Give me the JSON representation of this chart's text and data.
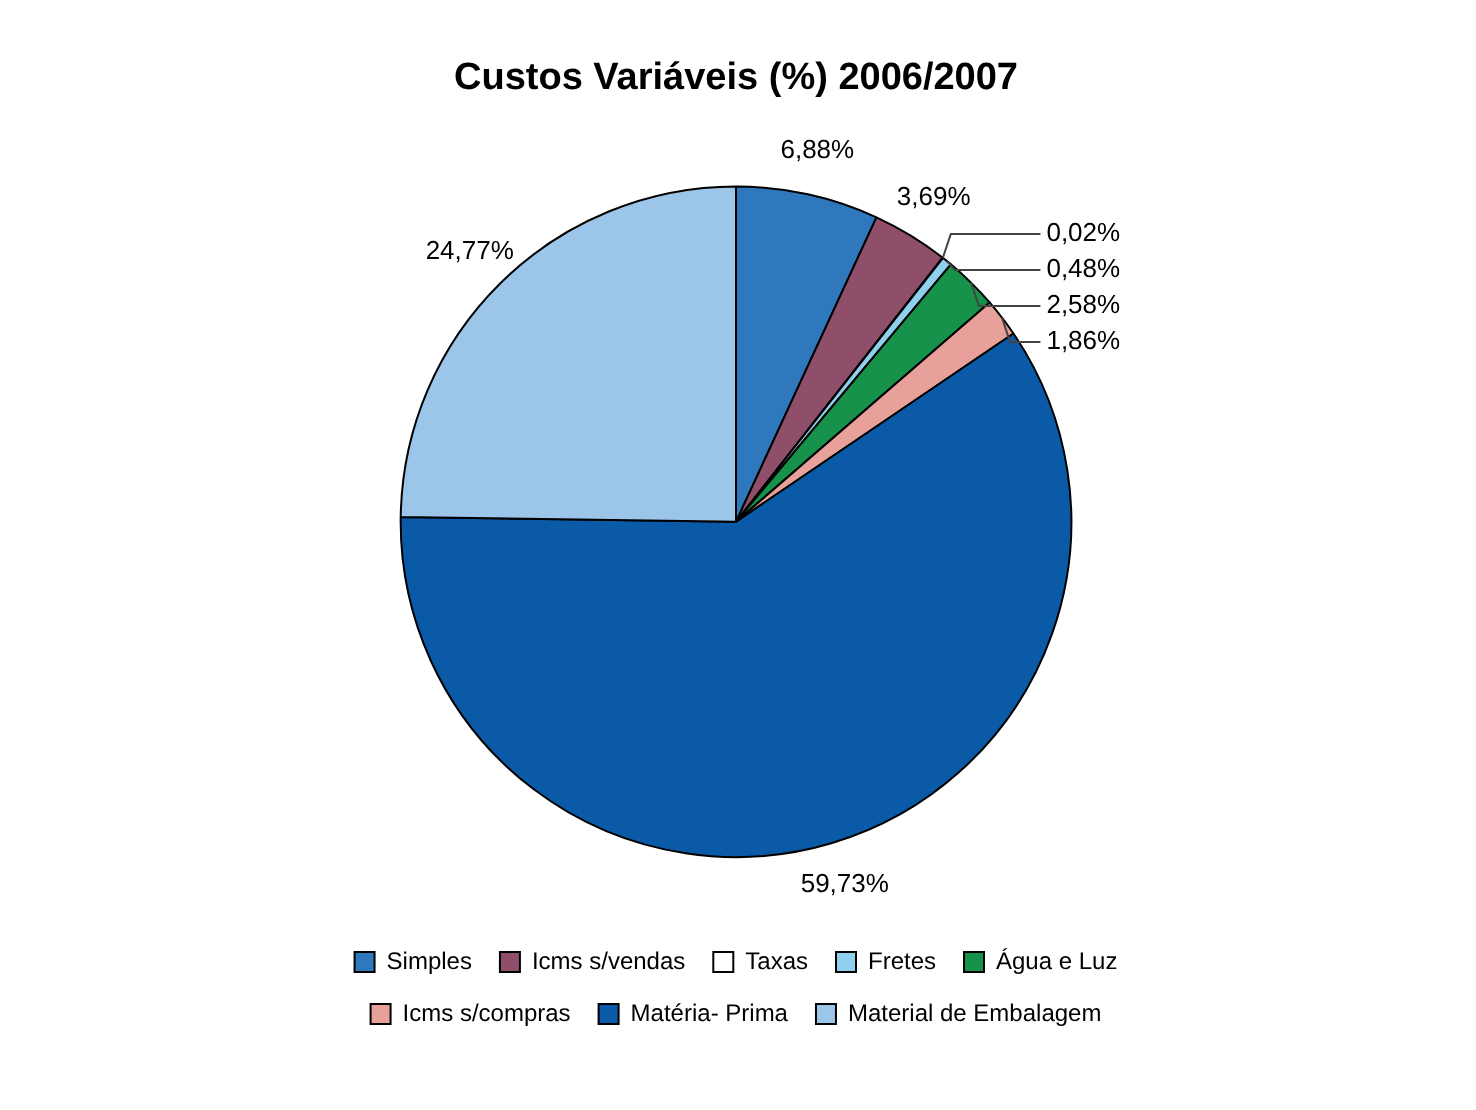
{
  "chart_data": {
    "type": "pie",
    "title": "Custos Variáveis (%) 2006/2007",
    "categories": [
      "Simples",
      "Icms s/vendas",
      "Taxas",
      "Fretes",
      "Água e Luz",
      "Icms s/compras",
      "Matéria- Prima",
      "Material de Embalagem"
    ],
    "values": [
      6.88,
      3.69,
      0.02,
      0.48,
      2.58,
      1.86,
      59.73,
      24.77
    ],
    "value_labels": [
      "6,88%",
      "3,69%",
      "0,02%",
      "0,48%",
      "2,58%",
      "1,86%",
      "59,73%",
      "24,77%"
    ],
    "colors": [
      "#2f78bd",
      "#8f4f6b",
      "#ffffff",
      "#8fd0ee",
      "#17924a",
      "#e8a09a",
      "#0b5aa8",
      "#9cc5ea"
    ],
    "legend": "bottom"
  }
}
